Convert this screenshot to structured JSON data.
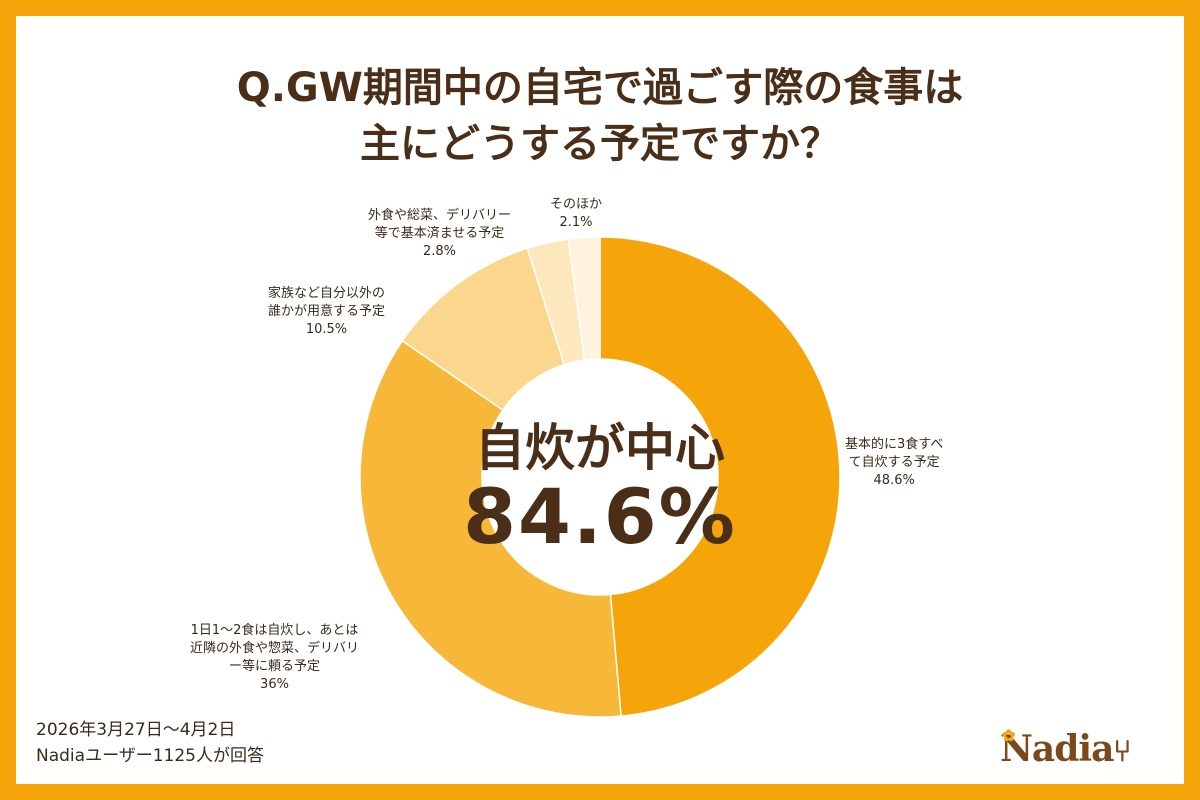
{
  "title": {
    "line1": "Q.GW期間中の自宅で過ごす際の食事は",
    "line2": "主にどうする予定ですか？"
  },
  "center": {
    "label": "自炊が中心",
    "value": "84.6%"
  },
  "chart_data": {
    "type": "pie",
    "style": "donut",
    "categories": [
      "基本的に3食すべて自炊する予定",
      "1日1〜2食は自炊し、あとは近隣の外食や惣菜、デリバリー等に頼る予定",
      "家族など自分以外の誰かが用意する予定",
      "外食や総菜、デリバリー等で基本済ませる予定",
      "そのほか"
    ],
    "values": [
      48.6,
      36,
      10.5,
      2.8,
      2.1
    ],
    "colors": [
      "#F5A50A",
      "#F7B83A",
      "#FAD78C",
      "#FDE8BE",
      "#FEF3DE"
    ],
    "labels": [
      {
        "lines": [
          "基本的に3食すべ",
          "て自炊する予定"
        ],
        "value": "48.6%"
      },
      {
        "lines": [
          "1日1〜2食は自炊し、あとは",
          "近隣の外食や惣菜、デリバリ",
          "ー等に頼る予定"
        ],
        "value": "36%"
      },
      {
        "lines": [
          "家族など自分以外の",
          "誰かが用意する予定"
        ],
        "value": "10.5%"
      },
      {
        "lines": [
          "外食や総菜、デリバリー",
          "等で基本済ませる予定"
        ],
        "value": "2.8%"
      },
      {
        "lines": [
          "そのほか"
        ],
        "value": "2.1%"
      }
    ]
  },
  "footnote": {
    "line1": "2026年3月27日〜4月2日",
    "line2": "Nadiaユーザー1125人が回答"
  },
  "logo": {
    "text": "Nadia"
  },
  "colors": {
    "border": "#F5A50A",
    "text": "#4A2E18"
  }
}
